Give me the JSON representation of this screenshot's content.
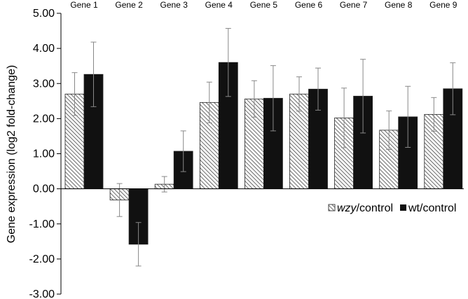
{
  "chart_data": {
    "type": "bar",
    "title": "",
    "xlabel": "",
    "ylabel": "Gene expression (log2 fold-change)",
    "ylim": [
      -3.0,
      5.0
    ],
    "yticks": [
      "5.00",
      "4.00",
      "3.00",
      "2.00",
      "1.00",
      "0.00",
      "-1.00",
      "-2.00",
      "-3.00"
    ],
    "categories": [
      "Gene 1",
      "Gene 2",
      "Gene 3",
      "Gene 4",
      "Gene 5",
      "Gene 6",
      "Gene 7",
      "Gene 8",
      "Gene 9"
    ],
    "series": [
      {
        "name_italic": "wzy",
        "name_rest": "/control",
        "pattern": "hatched",
        "color": "#555555",
        "values": [
          2.7,
          -0.32,
          0.13,
          2.46,
          2.56,
          2.7,
          2.02,
          1.67,
          2.12
        ],
        "error": [
          0.61,
          0.47,
          0.22,
          0.58,
          0.52,
          0.49,
          0.85,
          0.55,
          0.48
        ]
      },
      {
        "name_italic": "",
        "name_rest": "wt/control",
        "pattern": "solid",
        "color": "#111111",
        "values": [
          3.26,
          -1.58,
          1.07,
          3.6,
          2.58,
          2.84,
          2.64,
          2.05,
          2.85
        ],
        "error": [
          0.92,
          0.62,
          0.58,
          0.97,
          0.93,
          0.6,
          1.05,
          0.87,
          0.74
        ]
      }
    ],
    "legend_position": "right"
  }
}
